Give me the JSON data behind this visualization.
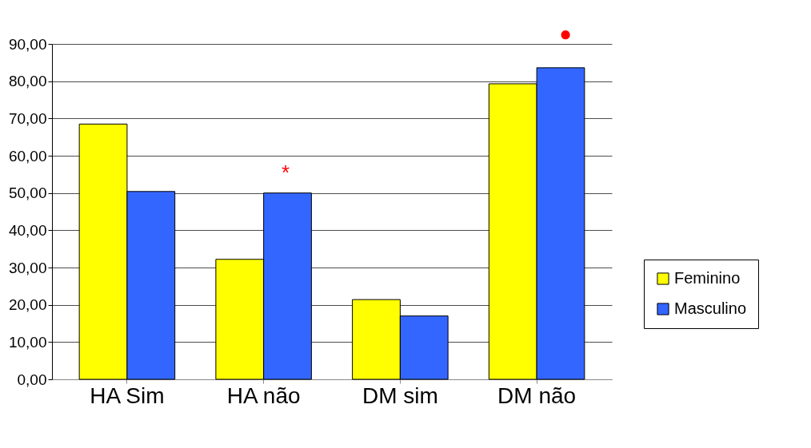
{
  "chart_data": {
    "type": "bar",
    "categories": [
      "HA Sim",
      "HA não",
      "DM sim",
      "DM não"
    ],
    "series": [
      {
        "name": "Feminino",
        "color": "#ffff00",
        "values": [
          68.5,
          32.2,
          21.4,
          79.3
        ]
      },
      {
        "name": "Masculino",
        "color": "#3366ff",
        "values": [
          50.4,
          50.0,
          17.0,
          83.6
        ]
      }
    ],
    "ylim": [
      0,
      90
    ],
    "yticks": [
      {
        "value": 0,
        "label": "0,00"
      },
      {
        "value": 10,
        "label": "10,00"
      },
      {
        "value": 20,
        "label": "20,00"
      },
      {
        "value": 30,
        "label": "30,00"
      },
      {
        "value": 40,
        "label": "40,00"
      },
      {
        "value": 50,
        "label": "50,00"
      },
      {
        "value": 60,
        "label": "60,00"
      },
      {
        "value": 70,
        "label": "70,00"
      },
      {
        "value": 80,
        "label": "80,00"
      },
      {
        "value": 90,
        "label": "90,00"
      }
    ],
    "grid": "y",
    "legend": "right",
    "annotations": [
      "*",
      "●"
    ]
  }
}
